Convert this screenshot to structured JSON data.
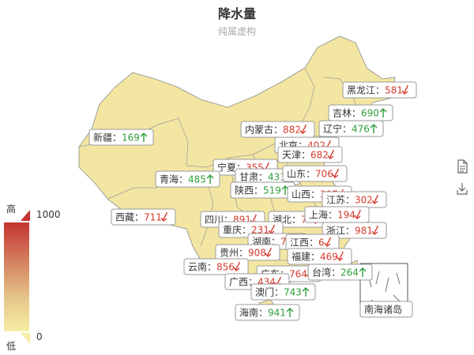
{
  "title": "降水量",
  "subtitle": "纯属虚构",
  "visual_map": {
    "max": 1000,
    "min": 0,
    "high_label": "高",
    "low_label": "低",
    "high_color": "#c23531",
    "low_color": "#f5eda4"
  },
  "chart_data": {
    "type": "map",
    "series_name": "降水量",
    "up_color": "#2f9e3b",
    "down_color": "#d63a2e",
    "regions": [
      {
        "name": "黑龙江",
        "value": 581,
        "trend": "down"
      },
      {
        "name": "吉林",
        "value": 690,
        "trend": "up"
      },
      {
        "name": "辽宁",
        "value": 476,
        "trend": "up"
      },
      {
        "name": "内蒙古",
        "value": 882,
        "trend": "down"
      },
      {
        "name": "北京",
        "value": 402,
        "trend": "down"
      },
      {
        "name": "天津",
        "value": 682,
        "trend": "down"
      },
      {
        "name": "新疆",
        "value": 169,
        "trend": "up"
      },
      {
        "name": "宁夏",
        "value": 355,
        "trend": "down"
      },
      {
        "name": "甘肃",
        "value": 431,
        "trend": "up"
      },
      {
        "name": "山东",
        "value": 706,
        "trend": "down"
      },
      {
        "name": "青海",
        "value": 485,
        "trend": "up"
      },
      {
        "name": "陕西",
        "value": 519,
        "trend": "up"
      },
      {
        "name": "山西",
        "value": 397,
        "trend": "down"
      },
      {
        "name": "江苏",
        "value": 302,
        "trend": "down"
      },
      {
        "name": "西藏",
        "value": 711,
        "trend": "down"
      },
      {
        "name": "四川",
        "value": 891,
        "trend": "down"
      },
      {
        "name": "湖北",
        "value": 71,
        "trend": "down"
      },
      {
        "name": "上海",
        "value": 194,
        "trend": "down"
      },
      {
        "name": "重庆",
        "value": 231,
        "trend": "down"
      },
      {
        "name": "浙江",
        "value": 981,
        "trend": "down"
      },
      {
        "name": "湖南",
        "value": 72,
        "trend": "down"
      },
      {
        "name": "江西",
        "value": 6,
        "trend": "down"
      },
      {
        "name": "贵州",
        "value": 908,
        "trend": "down"
      },
      {
        "name": "福建",
        "value": 469,
        "trend": "down"
      },
      {
        "name": "云南",
        "value": 856,
        "trend": "down"
      },
      {
        "name": "广东",
        "value": 764,
        "trend": "down"
      },
      {
        "name": "台湾",
        "value": 264,
        "trend": "up"
      },
      {
        "name": "广西",
        "value": 434,
        "trend": "down"
      },
      {
        "name": "澳门",
        "value": 743,
        "trend": "up"
      },
      {
        "name": "海南",
        "value": 941,
        "trend": "up"
      }
    ],
    "inset_label": "南海诸岛"
  }
}
